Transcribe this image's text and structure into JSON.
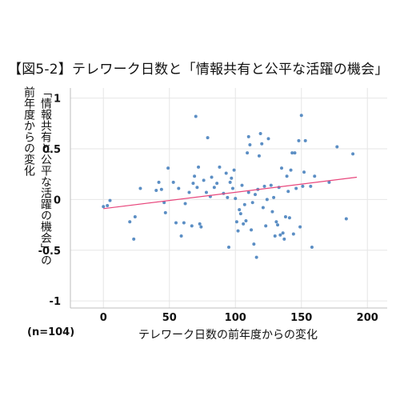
{
  "chart_data": {
    "type": "scatter",
    "title": "【図5-2】テレワーク日数と「情報共有と公平な活躍の機会」",
    "xlabel": "テレワーク日数の前年度からの変化",
    "ylabel": "「情報共有と公平な活躍の機会」の前年度からの変化",
    "ylabel_line1": "「情報共有と公平な活躍の機会」の",
    "ylabel_line2": "前年度からの変化",
    "sample_note": "(n=104)",
    "xlim": [
      -25,
      215
    ],
    "ylim": [
      -1.07,
      1.1
    ],
    "xticks": [
      0,
      50,
      100,
      150,
      200
    ],
    "yticks": [
      1,
      0.5,
      0,
      -0.5,
      -1
    ],
    "xtick_labels": [
      "0",
      "50",
      "100",
      "150",
      "200"
    ],
    "ytick_labels": [
      "1",
      "0.5",
      "0",
      "-0.5",
      "-1"
    ],
    "grid": true,
    "point_color": "#5b8ec4",
    "trendline_color": "#e8467c",
    "trendline": {
      "x": [
        0,
        192
      ],
      "y": [
        -0.09,
        0.22
      ]
    },
    "points": [
      {
        "x": 0,
        "y": -0.07
      },
      {
        "x": 3,
        "y": -0.06
      },
      {
        "x": 5,
        "y": -0.01
      },
      {
        "x": 20,
        "y": -0.22
      },
      {
        "x": 23,
        "y": -0.39
      },
      {
        "x": 24,
        "y": -0.17
      },
      {
        "x": 28,
        "y": 0.11
      },
      {
        "x": 40,
        "y": 0.09
      },
      {
        "x": 42,
        "y": 0.17
      },
      {
        "x": 44,
        "y": 0.1
      },
      {
        "x": 46,
        "y": -0.03
      },
      {
        "x": 47,
        "y": -0.13
      },
      {
        "x": 49,
        "y": 0.31
      },
      {
        "x": 53,
        "y": 0.17
      },
      {
        "x": 55,
        "y": -0.23
      },
      {
        "x": 57,
        "y": 0.11
      },
      {
        "x": 59,
        "y": -0.36
      },
      {
        "x": 61,
        "y": -0.23
      },
      {
        "x": 62,
        "y": -0.04
      },
      {
        "x": 65,
        "y": 0.07
      },
      {
        "x": 67,
        "y": -0.26
      },
      {
        "x": 68,
        "y": 0.16
      },
      {
        "x": 69,
        "y": 0.23
      },
      {
        "x": 70,
        "y": 0.82
      },
      {
        "x": 71,
        "y": 0.12
      },
      {
        "x": 72,
        "y": 0.32
      },
      {
        "x": 73,
        "y": -0.24
      },
      {
        "x": 74,
        "y": -0.27
      },
      {
        "x": 76,
        "y": 0.19
      },
      {
        "x": 78,
        "y": 0.07
      },
      {
        "x": 79,
        "y": 0.61
      },
      {
        "x": 81,
        "y": 0.03
      },
      {
        "x": 82,
        "y": 0.22
      },
      {
        "x": 84,
        "y": 0.12
      },
      {
        "x": 86,
        "y": 0.16
      },
      {
        "x": 88,
        "y": 0.32
      },
      {
        "x": 91,
        "y": 0.06
      },
      {
        "x": 93,
        "y": 0.26
      },
      {
        "x": 94,
        "y": 0.02
      },
      {
        "x": 95,
        "y": -0.47
      },
      {
        "x": 96,
        "y": 0.17
      },
      {
        "x": 97,
        "y": 0.21
      },
      {
        "x": 98,
        "y": 0.11
      },
      {
        "x": 99,
        "y": 0.29
      },
      {
        "x": 100,
        "y": 0.01
      },
      {
        "x": 101,
        "y": -0.22
      },
      {
        "x": 102,
        "y": -0.31
      },
      {
        "x": 103,
        "y": -0.1
      },
      {
        "x": 104,
        "y": -0.14
      },
      {
        "x": 105,
        "y": 0.14
      },
      {
        "x": 106,
        "y": -0.24
      },
      {
        "x": 107,
        "y": -0.05
      },
      {
        "x": 108,
        "y": -0.21
      },
      {
        "x": 109,
        "y": 0.46
      },
      {
        "x": 110,
        "y": 0.62
      },
      {
        "x": 110,
        "y": 0.07
      },
      {
        "x": 111,
        "y": 0.54
      },
      {
        "x": 112,
        "y": -0.3
      },
      {
        "x": 113,
        "y": -0.03
      },
      {
        "x": 114,
        "y": -0.44
      },
      {
        "x": 115,
        "y": 0.05
      },
      {
        "x": 116,
        "y": -0.57
      },
      {
        "x": 117,
        "y": 0.1
      },
      {
        "x": 118,
        "y": 0.43
      },
      {
        "x": 119,
        "y": 0.65
      },
      {
        "x": 120,
        "y": 0.55
      },
      {
        "x": 121,
        "y": -0.08
      },
      {
        "x": 122,
        "y": 0.13
      },
      {
        "x": 123,
        "y": -0.26
      },
      {
        "x": 124,
        "y": 0.0
      },
      {
        "x": 125,
        "y": 0.6
      },
      {
        "x": 127,
        "y": 0.14
      },
      {
        "x": 128,
        "y": -0.12
      },
      {
        "x": 129,
        "y": 0.02
      },
      {
        "x": 130,
        "y": -0.36
      },
      {
        "x": 131,
        "y": -0.22
      },
      {
        "x": 132,
        "y": -0.25
      },
      {
        "x": 133,
        "y": 0.12
      },
      {
        "x": 134,
        "y": -0.35
      },
      {
        "x": 135,
        "y": 0.31
      },
      {
        "x": 136,
        "y": -0.33
      },
      {
        "x": 137,
        "y": -0.39
      },
      {
        "x": 138,
        "y": -0.17
      },
      {
        "x": 139,
        "y": 0.23
      },
      {
        "x": 140,
        "y": 0.08
      },
      {
        "x": 141,
        "y": -0.18
      },
      {
        "x": 142,
        "y": 0.29
      },
      {
        "x": 143,
        "y": 0.46
      },
      {
        "x": 144,
        "y": -0.34
      },
      {
        "x": 145,
        "y": 0.46
      },
      {
        "x": 146,
        "y": 0.11
      },
      {
        "x": 148,
        "y": 0.58
      },
      {
        "x": 149,
        "y": -0.27
      },
      {
        "x": 150,
        "y": 0.83
      },
      {
        "x": 151,
        "y": 0.13
      },
      {
        "x": 152,
        "y": 0.27
      },
      {
        "x": 153,
        "y": 0.58
      },
      {
        "x": 157,
        "y": 0.13
      },
      {
        "x": 158,
        "y": -0.47
      },
      {
        "x": 160,
        "y": 0.23
      },
      {
        "x": 171,
        "y": 0.17
      },
      {
        "x": 177,
        "y": 0.52
      },
      {
        "x": 184,
        "y": -0.19
      },
      {
        "x": 189,
        "y": 0.45
      }
    ]
  }
}
